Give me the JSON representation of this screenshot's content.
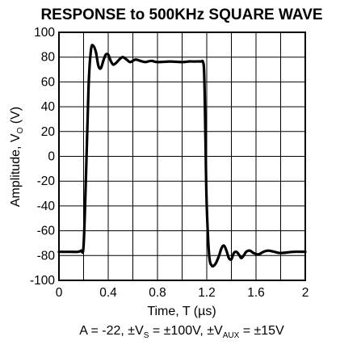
{
  "chart_data": {
    "type": "line",
    "title": "RESPONSE to 500KHz SQUARE WAVE",
    "xlabel": {
      "prefix": "Time, T (",
      "unit": "µs",
      "suffix": ")"
    },
    "ylabel": {
      "main": "Amplitude, V",
      "sub": "O",
      "unit": " (V)"
    },
    "caption": {
      "gain": "A = -22, ±V",
      "vs_sub": "S",
      "vs_val": " = ±100V, ±V",
      "aux_sub": "AUX",
      "aux_val": " = ±15V"
    },
    "xlim": [
      0,
      2
    ],
    "ylim": [
      -100,
      100
    ],
    "x_ticks": [
      "0",
      "0.4",
      "0.8",
      "1.2",
      "1.6",
      "2"
    ],
    "x_tick_values": [
      0,
      0.4,
      0.8,
      1.2,
      1.6,
      2
    ],
    "y_ticks": [
      "100",
      "80",
      "60",
      "40",
      "20",
      "0",
      "-20",
      "-40",
      "-60",
      "-80",
      "-100"
    ],
    "y_tick_values": [
      100,
      80,
      60,
      40,
      20,
      0,
      -20,
      -40,
      -60,
      -80,
      -100
    ],
    "grid": true,
    "line_color": "#000000",
    "series": [
      {
        "x": [
          0,
          0.05,
          0.1,
          0.15,
          0.18,
          0.2,
          0.22,
          0.24,
          0.26,
          0.28,
          0.3,
          0.32,
          0.34,
          0.36,
          0.38,
          0.4,
          0.42,
          0.44,
          0.46,
          0.48,
          0.5,
          0.52,
          0.55,
          0.58,
          0.62,
          0.66,
          0.7,
          0.75,
          0.8,
          0.9,
          1.0,
          1.05,
          1.1,
          1.15,
          1.17,
          1.18,
          1.19,
          1.2,
          1.22,
          1.24,
          1.26,
          1.28,
          1.3,
          1.32,
          1.34,
          1.36,
          1.38,
          1.4,
          1.42,
          1.44,
          1.46,
          1.48,
          1.5,
          1.52,
          1.55,
          1.58,
          1.62,
          1.66,
          1.7,
          1.75,
          1.8,
          1.9,
          2.0
        ],
        "y": [
          -77,
          -77,
          -77,
          -77,
          -76,
          -72,
          -15,
          55,
          86,
          89,
          84,
          73,
          71,
          77,
          82,
          82,
          77,
          74,
          75,
          77,
          79,
          80,
          78,
          76,
          78,
          77,
          76,
          77,
          76,
          76.5,
          76,
          76.5,
          76.5,
          76.5,
          76,
          65,
          10,
          -40,
          -80,
          -88,
          -88,
          -85,
          -80,
          -74,
          -72,
          -76,
          -82,
          -83,
          -78,
          -77,
          -79,
          -82,
          -80,
          -77,
          -76,
          -78,
          -79,
          -77,
          -76,
          -77,
          -78,
          -77,
          -77
        ]
      }
    ]
  }
}
